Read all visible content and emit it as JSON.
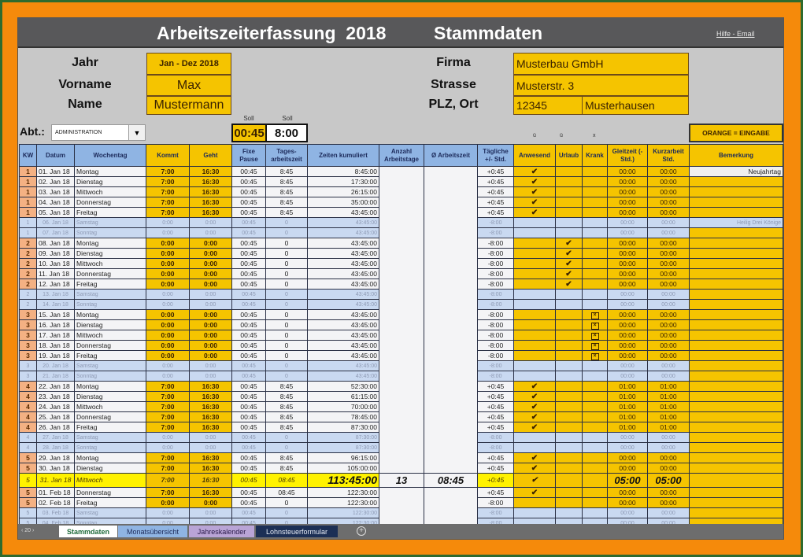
{
  "window": {
    "title": "Arbeitszeiterfassung  2018",
    "subtitle": "Stammdaten",
    "help_link": "Hilfe - Email"
  },
  "stammdaten": {
    "jahr_label": "Jahr",
    "jahr_value": "Jan - Dez 2018",
    "vorname_label": "Vorname",
    "vorname_value": "Max",
    "name_label": "Name",
    "name_value": "Mustermann",
    "firma_label": "Firma",
    "firma_value": "Musterbau GmbH",
    "strasse_label": "Strasse",
    "strasse_value": "Musterstr. 3",
    "plz_ort_label": "PLZ, Ort",
    "plz_value": "12345",
    "ort_value": "Musterhausen",
    "abt_label": "Abt.:",
    "abt_value": "ADMINISTRATION",
    "soll_pause_label": "Soll",
    "soll_pause_value": "00:45",
    "soll_zeit_label": "Soll",
    "soll_zeit_value": "8:00",
    "symbol_anwesend": "ü",
    "symbol_urlaub": "ü",
    "symbol_krank": "x",
    "legend": "ORANGE = EINGABE"
  },
  "colors": {
    "frame_orange": "#f58a0b",
    "input_yellow": "#f5c400",
    "header_blue": "#8fb4e3",
    "weekend_blue": "#c9d9f1",
    "kw_salmon": "#f4b183",
    "today_yellow": "#fff200",
    "titlebar_gray": "#58585a"
  },
  "table": {
    "headers": {
      "kw": "KW",
      "datum": "Datum",
      "wochentag": "Wochentag",
      "kommt": "Kommt",
      "geht": "Geht",
      "pause": "Fixe Pause",
      "tages": "Tages-arbeitszeit",
      "kumuliert": "Zeiten kumuliert",
      "anzahl": "Anzahl Arbeitstage",
      "avg": "Ø Arbeitszeit",
      "taeglich": "Tägliche +/- Std.",
      "anwesend": "Anwesend",
      "urlaub": "Urlaub",
      "krank": "Krank",
      "gleitzeit": "Gleitzeit (- Std.)",
      "kurzarbeit": "Kurzarbeit Std.",
      "bemerkung": "Bemerkung"
    },
    "rows": [
      {
        "kw": "1",
        "datum": "01. Jan 18",
        "tag": "Montag",
        "kommt": "7:00",
        "geht": "16:30",
        "pause": "00:45",
        "tages": "8:45",
        "kum": "8:45:00",
        "diff": "+0:45",
        "anw": "✔",
        "url": "",
        "kr": "",
        "gleit": "00:00",
        "kurz": "00:00",
        "bem": "Neujahrtag",
        "we": false
      },
      {
        "kw": "1",
        "datum": "02. Jan 18",
        "tag": "Dienstag",
        "kommt": "7:00",
        "geht": "16:30",
        "pause": "00:45",
        "tages": "8:45",
        "kum": "17:30:00",
        "diff": "+0:45",
        "anw": "✔",
        "url": "",
        "kr": "",
        "gleit": "00:00",
        "kurz": "00:00",
        "bem": "",
        "we": false
      },
      {
        "kw": "1",
        "datum": "03. Jan 18",
        "tag": "Mittwoch",
        "kommt": "7:00",
        "geht": "16:30",
        "pause": "00:45",
        "tages": "8:45",
        "kum": "26:15:00",
        "diff": "+0:45",
        "anw": "✔",
        "url": "",
        "kr": "",
        "gleit": "00:00",
        "kurz": "00:00",
        "bem": "",
        "we": false
      },
      {
        "kw": "1",
        "datum": "04. Jan 18",
        "tag": "Donnerstag",
        "kommt": "7:00",
        "geht": "16:30",
        "pause": "00:45",
        "tages": "8:45",
        "kum": "35:00:00",
        "diff": "+0:45",
        "anw": "✔",
        "url": "",
        "kr": "",
        "gleit": "00:00",
        "kurz": "00:00",
        "bem": "",
        "we": false
      },
      {
        "kw": "1",
        "datum": "05. Jan 18",
        "tag": "Freitag",
        "kommt": "7:00",
        "geht": "16:30",
        "pause": "00:45",
        "tages": "8:45",
        "kum": "43:45:00",
        "diff": "+0:45",
        "anw": "✔",
        "url": "",
        "kr": "",
        "gleit": "00:00",
        "kurz": "00:00",
        "bem": "",
        "we": false
      },
      {
        "kw": "1",
        "datum": "06. Jan 18",
        "tag": "Samstag",
        "kommt": "0:00",
        "geht": "0:00",
        "pause": "00:45",
        "tages": "0",
        "kum": "43:45:00",
        "diff": "-8:00",
        "anw": "",
        "url": "",
        "kr": "",
        "gleit": "00:00",
        "kurz": "00:00",
        "bem": "Heilig Drei Könige",
        "we": true
      },
      {
        "kw": "1",
        "datum": "07. Jan 18",
        "tag": "Sonntag",
        "kommt": "0:00",
        "geht": "0:00",
        "pause": "00:45",
        "tages": "0",
        "kum": "43:45:00",
        "diff": "-8:00",
        "anw": "",
        "url": "",
        "kr": "",
        "gleit": "00:00",
        "kurz": "00:00",
        "bem": "",
        "we": true
      },
      {
        "kw": "2",
        "datum": "08. Jan 18",
        "tag": "Montag",
        "kommt": "0:00",
        "geht": "0:00",
        "pause": "00:45",
        "tages": "0",
        "kum": "43:45:00",
        "diff": "-8:00",
        "anw": "",
        "url": "✔",
        "kr": "",
        "gleit": "00:00",
        "kurz": "00:00",
        "bem": "",
        "we": false
      },
      {
        "kw": "2",
        "datum": "09. Jan 18",
        "tag": "Dienstag",
        "kommt": "0:00",
        "geht": "0:00",
        "pause": "00:45",
        "tages": "0",
        "kum": "43:45:00",
        "diff": "-8:00",
        "anw": "",
        "url": "✔",
        "kr": "",
        "gleit": "00:00",
        "kurz": "00:00",
        "bem": "",
        "we": false
      },
      {
        "kw": "2",
        "datum": "10. Jan 18",
        "tag": "Mittwoch",
        "kommt": "0:00",
        "geht": "0:00",
        "pause": "00:45",
        "tages": "0",
        "kum": "43:45:00",
        "diff": "-8:00",
        "anw": "",
        "url": "✔",
        "kr": "",
        "gleit": "00:00",
        "kurz": "00:00",
        "bem": "",
        "we": false
      },
      {
        "kw": "2",
        "datum": "11. Jan 18",
        "tag": "Donnerstag",
        "kommt": "0:00",
        "geht": "0:00",
        "pause": "00:45",
        "tages": "0",
        "kum": "43:45:00",
        "diff": "-8:00",
        "anw": "",
        "url": "✔",
        "kr": "",
        "gleit": "00:00",
        "kurz": "00:00",
        "bem": "",
        "we": false
      },
      {
        "kw": "2",
        "datum": "12. Jan 18",
        "tag": "Freitag",
        "kommt": "0:00",
        "geht": "0:00",
        "pause": "00:45",
        "tages": "0",
        "kum": "43:45:00",
        "diff": "-8:00",
        "anw": "",
        "url": "✔",
        "kr": "",
        "gleit": "00:00",
        "kurz": "00:00",
        "bem": "",
        "we": false
      },
      {
        "kw": "2",
        "datum": "13. Jan 18",
        "tag": "Samstag",
        "kommt": "0:00",
        "geht": "0:00",
        "pause": "00:45",
        "tages": "0",
        "kum": "43:45:00",
        "diff": "-8:00",
        "anw": "",
        "url": "",
        "kr": "",
        "gleit": "00:00",
        "kurz": "00:00",
        "bem": "",
        "we": true
      },
      {
        "kw": "2",
        "datum": "14. Jan 18",
        "tag": "Sonntag",
        "kommt": "0:00",
        "geht": "0:00",
        "pause": "00:45",
        "tages": "0",
        "kum": "43:45:00",
        "diff": "-8:00",
        "anw": "",
        "url": "",
        "kr": "",
        "gleit": "00:00",
        "kurz": "00:00",
        "bem": "",
        "we": true
      },
      {
        "kw": "3",
        "datum": "15. Jan 18",
        "tag": "Montag",
        "kommt": "0:00",
        "geht": "0:00",
        "pause": "00:45",
        "tages": "0",
        "kum": "43:45:00",
        "diff": "-8:00",
        "anw": "",
        "url": "",
        "kr": "X",
        "gleit": "00:00",
        "kurz": "00:00",
        "bem": "",
        "we": false
      },
      {
        "kw": "3",
        "datum": "16. Jan 18",
        "tag": "Dienstag",
        "kommt": "0:00",
        "geht": "0:00",
        "pause": "00:45",
        "tages": "0",
        "kum": "43:45:00",
        "diff": "-8:00",
        "anw": "",
        "url": "",
        "kr": "X",
        "gleit": "00:00",
        "kurz": "00:00",
        "bem": "",
        "we": false
      },
      {
        "kw": "3",
        "datum": "17. Jan 18",
        "tag": "Mittwoch",
        "kommt": "0:00",
        "geht": "0:00",
        "pause": "00:45",
        "tages": "0",
        "kum": "43:45:00",
        "diff": "-8:00",
        "anw": "",
        "url": "",
        "kr": "X",
        "gleit": "00:00",
        "kurz": "00:00",
        "bem": "",
        "we": false
      },
      {
        "kw": "3",
        "datum": "18. Jan 18",
        "tag": "Donnerstag",
        "kommt": "0:00",
        "geht": "0:00",
        "pause": "00:45",
        "tages": "0",
        "kum": "43:45:00",
        "diff": "-8:00",
        "anw": "",
        "url": "",
        "kr": "X",
        "gleit": "00:00",
        "kurz": "00:00",
        "bem": "",
        "we": false
      },
      {
        "kw": "3",
        "datum": "19. Jan 18",
        "tag": "Freitag",
        "kommt": "0:00",
        "geht": "0:00",
        "pause": "00:45",
        "tages": "0",
        "kum": "43:45:00",
        "diff": "-8:00",
        "anw": "",
        "url": "",
        "kr": "X",
        "gleit": "00:00",
        "kurz": "00:00",
        "bem": "",
        "we": false
      },
      {
        "kw": "3",
        "datum": "20. Jan 18",
        "tag": "Samstag",
        "kommt": "0:00",
        "geht": "0:00",
        "pause": "00:45",
        "tages": "0",
        "kum": "43:45:00",
        "diff": "-8:00",
        "anw": "",
        "url": "",
        "kr": "",
        "gleit": "00:00",
        "kurz": "00:00",
        "bem": "",
        "we": true
      },
      {
        "kw": "3",
        "datum": "21. Jan 18",
        "tag": "Sonntag",
        "kommt": "0:00",
        "geht": "0:00",
        "pause": "00:45",
        "tages": "0",
        "kum": "43:45:00",
        "diff": "-8:00",
        "anw": "",
        "url": "",
        "kr": "",
        "gleit": "00:00",
        "kurz": "00:00",
        "bem": "",
        "we": true
      },
      {
        "kw": "4",
        "datum": "22. Jan 18",
        "tag": "Montag",
        "kommt": "7:00",
        "geht": "16:30",
        "pause": "00:45",
        "tages": "8:45",
        "kum": "52:30:00",
        "diff": "+0:45",
        "anw": "✔",
        "url": "",
        "kr": "",
        "gleit": "01:00",
        "kurz": "01:00",
        "bem": "",
        "we": false
      },
      {
        "kw": "4",
        "datum": "23. Jan 18",
        "tag": "Dienstag",
        "kommt": "7:00",
        "geht": "16:30",
        "pause": "00:45",
        "tages": "8:45",
        "kum": "61:15:00",
        "diff": "+0:45",
        "anw": "✔",
        "url": "",
        "kr": "",
        "gleit": "01:00",
        "kurz": "01:00",
        "bem": "",
        "we": false
      },
      {
        "kw": "4",
        "datum": "24. Jan 18",
        "tag": "Mittwoch",
        "kommt": "7:00",
        "geht": "16:30",
        "pause": "00:45",
        "tages": "8:45",
        "kum": "70:00:00",
        "diff": "+0:45",
        "anw": "✔",
        "url": "",
        "kr": "",
        "gleit": "01:00",
        "kurz": "01:00",
        "bem": "",
        "we": false
      },
      {
        "kw": "4",
        "datum": "25. Jan 18",
        "tag": "Donnerstag",
        "kommt": "7:00",
        "geht": "16:30",
        "pause": "00:45",
        "tages": "8:45",
        "kum": "78:45:00",
        "diff": "+0:45",
        "anw": "✔",
        "url": "",
        "kr": "",
        "gleit": "01:00",
        "kurz": "01:00",
        "bem": "",
        "we": false
      },
      {
        "kw": "4",
        "datum": "26. Jan 18",
        "tag": "Freitag",
        "kommt": "7:00",
        "geht": "16:30",
        "pause": "00:45",
        "tages": "8:45",
        "kum": "87:30:00",
        "diff": "+0:45",
        "anw": "✔",
        "url": "",
        "kr": "",
        "gleit": "01:00",
        "kurz": "01:00",
        "bem": "",
        "we": false
      },
      {
        "kw": "4",
        "datum": "27. Jan 18",
        "tag": "Samstag",
        "kommt": "0:00",
        "geht": "0:00",
        "pause": "00:45",
        "tages": "0",
        "kum": "87:30:00",
        "diff": "-8:00",
        "anw": "",
        "url": "",
        "kr": "",
        "gleit": "00:00",
        "kurz": "00:00",
        "bem": "",
        "we": true
      },
      {
        "kw": "4",
        "datum": "28. Jan 18",
        "tag": "Sonntag",
        "kommt": "0:00",
        "geht": "0:00",
        "pause": "00:45",
        "tages": "0",
        "kum": "87:30:00",
        "diff": "-8:00",
        "anw": "",
        "url": "",
        "kr": "",
        "gleit": "00:00",
        "kurz": "00:00",
        "bem": "",
        "we": true
      },
      {
        "kw": "5",
        "datum": "29. Jan 18",
        "tag": "Montag",
        "kommt": "7:00",
        "geht": "16:30",
        "pause": "00:45",
        "tages": "8:45",
        "kum": "96:15:00",
        "diff": "+0:45",
        "anw": "✔",
        "url": "",
        "kr": "",
        "gleit": "00:00",
        "kurz": "00:00",
        "bem": "",
        "we": false
      },
      {
        "kw": "5",
        "datum": "30. Jan 18",
        "tag": "Dienstag",
        "kommt": "7:00",
        "geht": "16:30",
        "pause": "00:45",
        "tages": "8:45",
        "kum": "105:00:00",
        "diff": "+0:45",
        "anw": "✔",
        "url": "",
        "kr": "",
        "gleit": "00:00",
        "kurz": "00:00",
        "bem": "",
        "we": false
      }
    ],
    "summary_row": {
      "kw": "5",
      "datum": "31. Jan 18",
      "tag": "Mittwoch",
      "kommt": "7:00",
      "geht": "16:30",
      "pause": "00:45",
      "tages": "08:45",
      "kum": "113:45:00",
      "anzahl": "13",
      "avg": "08:45",
      "diff": "+0:45",
      "anw": "✔",
      "gleit": "05:00",
      "kurz": "05:00"
    },
    "rows_after": [
      {
        "kw": "5",
        "datum": "01. Feb 18",
        "tag": "Donnerstag",
        "kommt": "7:00",
        "geht": "16:30",
        "pause": "00:45",
        "tages": "08:45",
        "kum": "122:30:00",
        "diff": "+0:45",
        "anw": "✔",
        "url": "",
        "kr": "",
        "gleit": "00:00",
        "kurz": "00:00",
        "bem": "",
        "we": false
      },
      {
        "kw": "5",
        "datum": "02. Feb 18",
        "tag": "Freitag",
        "kommt": "0:00",
        "geht": "0:00",
        "pause": "00:45",
        "tages": "0",
        "kum": "122:30:00",
        "diff": "-8:00",
        "anw": "",
        "url": "",
        "kr": "",
        "gleit": "00:00",
        "kurz": "00:00",
        "bem": "",
        "we": false
      },
      {
        "kw": "5",
        "datum": "03. Feb 18",
        "tag": "Samstag",
        "kommt": "0:00",
        "geht": "0:00",
        "pause": "00:45",
        "tages": "0",
        "kum": "122:30:00",
        "diff": "-8:00",
        "anw": "",
        "url": "",
        "kr": "",
        "gleit": "00:00",
        "kurz": "00:00",
        "bem": "",
        "we": true
      },
      {
        "kw": "5",
        "datum": "04. Feb 18",
        "tag": "Sonntag",
        "kommt": "0:00",
        "geht": "0:00",
        "pause": "00:45",
        "tages": "0",
        "kum": "122:30:00",
        "diff": "-8:00",
        "anw": "",
        "url": "",
        "kr": "",
        "gleit": "00:00",
        "kurz": "00:00",
        "bem": "",
        "we": true
      }
    ]
  },
  "sheet_tabs": {
    "nav": "‹ 20 ›",
    "tabs": [
      {
        "label": "Stammdaten",
        "active": true
      },
      {
        "label": "Monatsübersicht",
        "active": false
      },
      {
        "label": "Jahreskalender",
        "active": false
      },
      {
        "label": "Lohnsteuerformular",
        "active": false
      }
    ],
    "add": "+"
  }
}
